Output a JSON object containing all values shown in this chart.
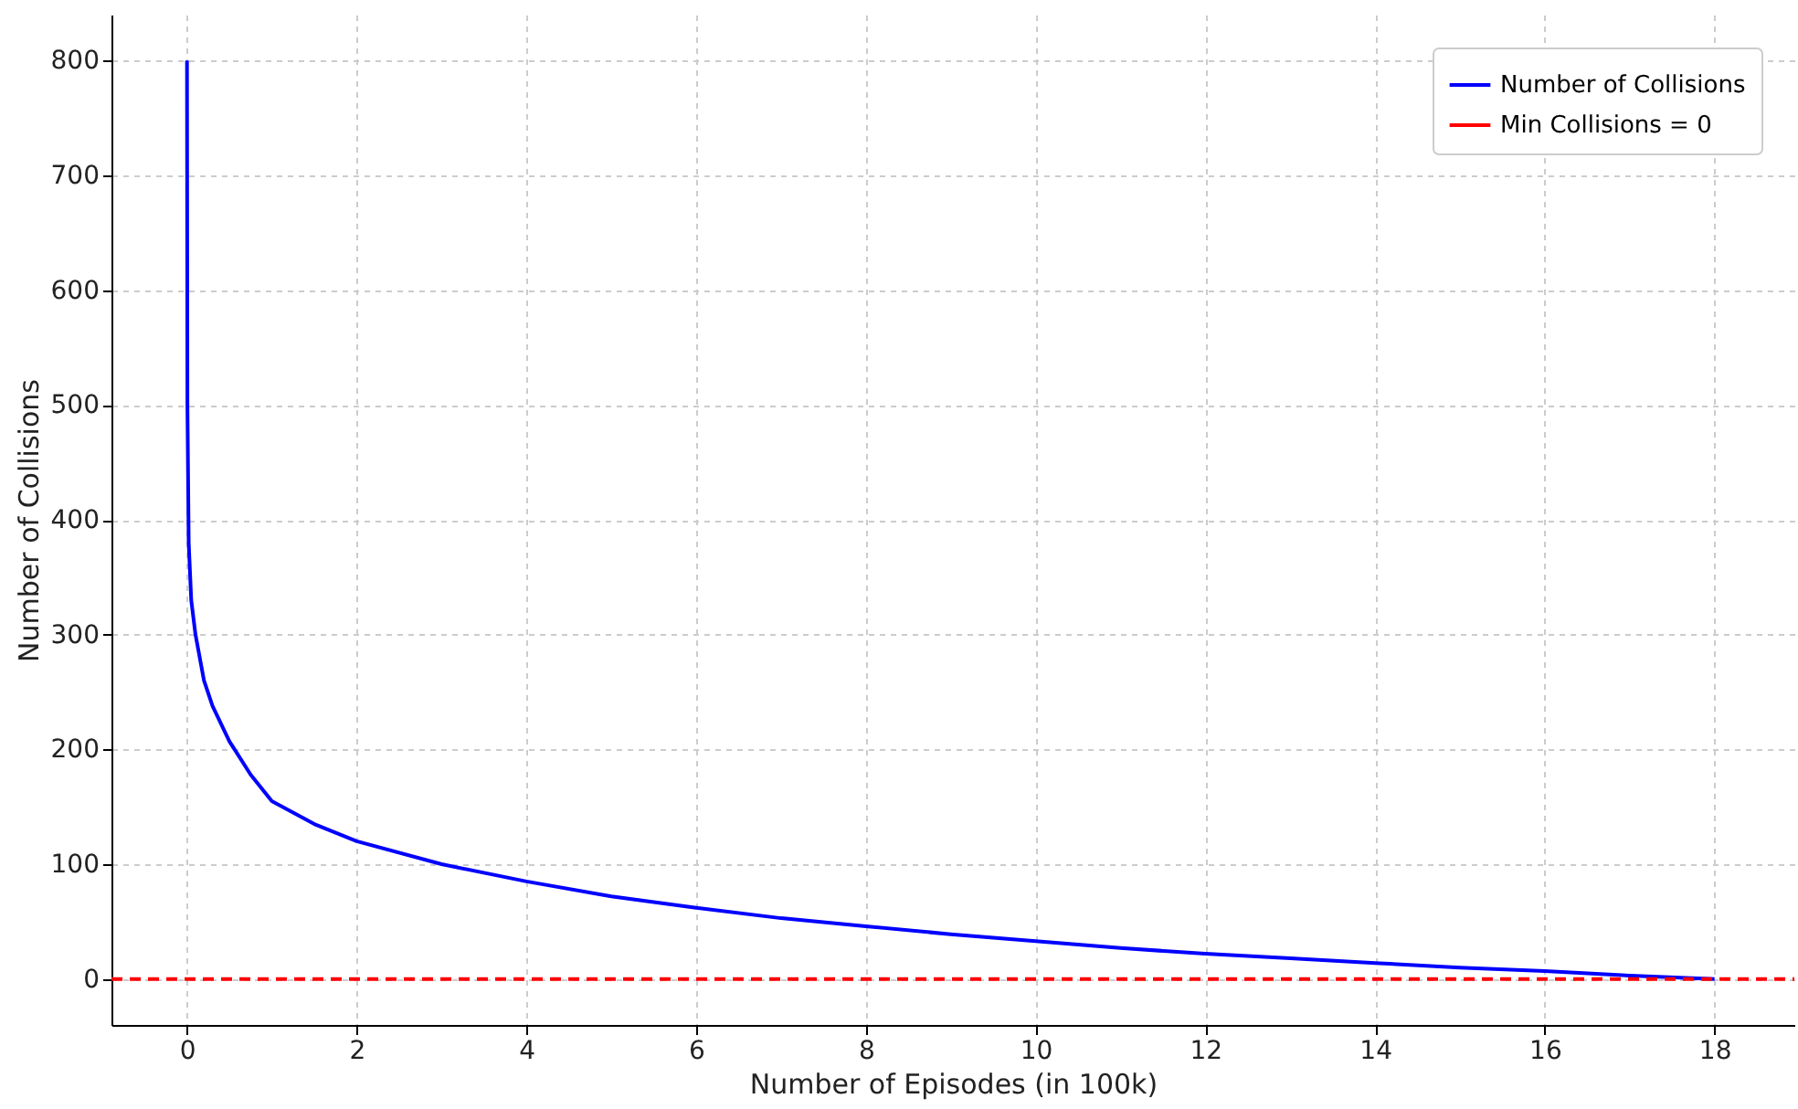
{
  "chart_data": {
    "type": "line",
    "xlabel": "Number of Episodes (in 100k)",
    "ylabel": "Number of Collisions",
    "xlim": [
      -0.89,
      18.94
    ],
    "ylim": [
      -40,
      840
    ],
    "xticks": [
      0,
      2,
      4,
      6,
      8,
      10,
      12,
      14,
      16,
      18
    ],
    "yticks": [
      0,
      100,
      200,
      300,
      400,
      500,
      600,
      700,
      800
    ],
    "grid": true,
    "legend": "top right",
    "line_style": "solid",
    "marker": "none",
    "series": [
      {
        "name": "Number of Collisions",
        "color": "#0000ff",
        "x": [
          0,
          0.005,
          0.02,
          0.05,
          0.1,
          0.2,
          0.3,
          0.5,
          0.75,
          1,
          1.5,
          2,
          3,
          4,
          5,
          6,
          7,
          8,
          9,
          10,
          11,
          12,
          13,
          14,
          15,
          16,
          17,
          18
        ],
        "values": [
          800,
          500,
          380,
          330,
          300,
          260,
          238,
          207,
          178,
          155,
          135,
          120,
          100,
          85,
          72,
          62,
          53,
          46,
          39,
          33,
          27,
          22,
          18,
          14,
          10,
          7,
          3,
          0
        ]
      }
    ],
    "ref_lines": [
      {
        "axis": "y",
        "value": 0,
        "label": "Min Collisions = 0",
        "color": "#ff0000",
        "line_style": "dashed"
      }
    ]
  }
}
